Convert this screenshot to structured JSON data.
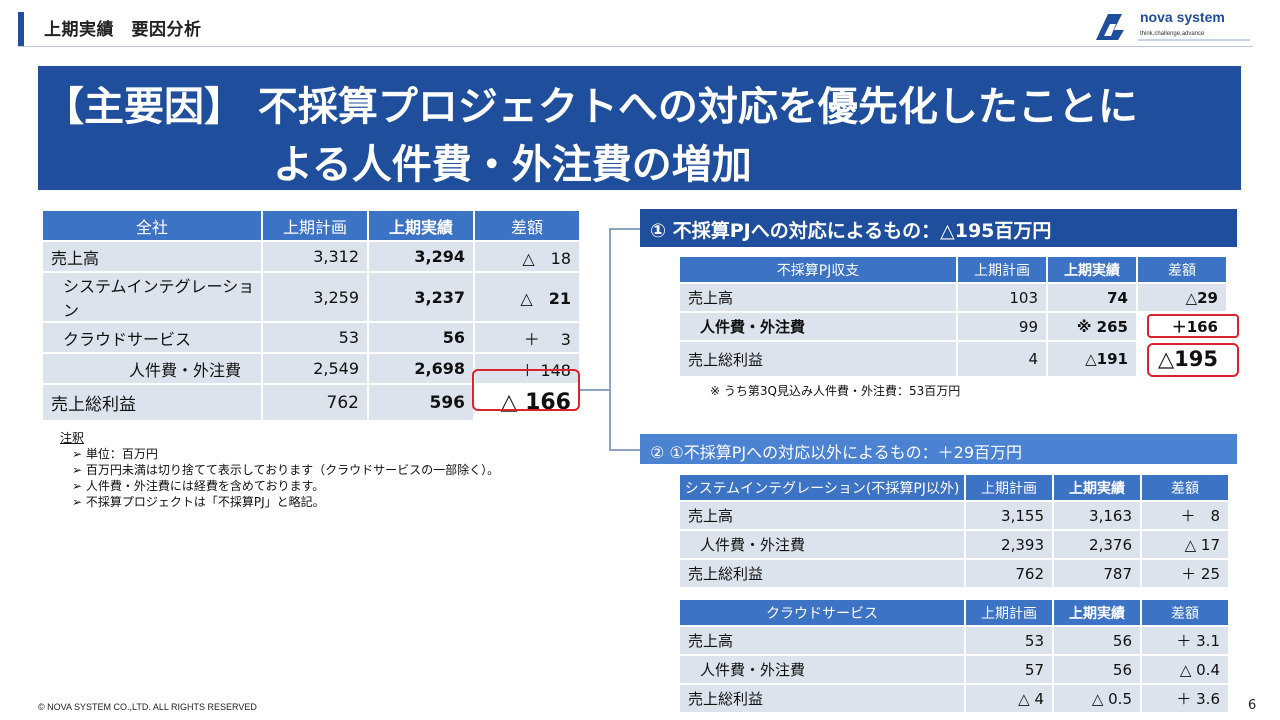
{
  "header": {
    "title": "上期実績　要因分析"
  },
  "logo": {
    "name": "nova system",
    "tagline": "think,challenge,advance"
  },
  "banner": {
    "line1": "【主要因】 不採算プロジェクトへの対応を優先化したことに",
    "line2": "よる人件費・外注費の増加"
  },
  "main_table": {
    "headers": [
      "全社",
      "上期計画",
      "上期実績",
      "差額"
    ],
    "rows": [
      {
        "label": "売上高",
        "plan": "3,312",
        "actual": "3,294",
        "diff": "△　18"
      },
      {
        "label": "システムインテグレーション",
        "plan": "3,259",
        "actual": "3,237",
        "diff": "△　21"
      },
      {
        "label": "クラウドサービス",
        "plan": "53",
        "actual": "56",
        "diff": "＋　 3"
      },
      {
        "label": "人件費・外注費",
        "plan": "2,549",
        "actual": "2,698",
        "diff": "＋ 148"
      },
      {
        "label": "売上総利益",
        "plan": "762",
        "actual": "596",
        "diff": "△ 166"
      }
    ]
  },
  "notes": {
    "title": "注釈",
    "items": [
      "➢ 単位：百万円",
      "➢ 百万円未満は切り捨てて表示しております（クラウドサービスの一部除く）。",
      "➢ 人件費・外注費には経費を含めております。",
      "➢ 不採算プロジェクトは「不採算PJ」と略記。"
    ]
  },
  "section1": {
    "title": "① 不採算PJへの対応によるもの：△195百万円",
    "table": {
      "headers": [
        "不採算PJ収支",
        "上期計画",
        "上期実績",
        "差額"
      ],
      "rows": [
        {
          "label": "売上高",
          "plan": "103",
          "actual": "74",
          "diff": "△29"
        },
        {
          "label": "人件費・外注費",
          "plan": "99",
          "actual": "※ 265",
          "diff": "＋166"
        },
        {
          "label": "売上総利益",
          "plan": "4",
          "actual": "△191",
          "diff": "△195"
        }
      ]
    },
    "note": "※ うち第3Q見込み人件費・外注費：53百万円"
  },
  "section2": {
    "title": "② ①不採算PJへの対応以外によるもの：＋29百万円",
    "si_table": {
      "headers": [
        "システムインテグレーション(不採算PJ以外)",
        "上期計画",
        "上期実績",
        "差額"
      ],
      "rows": [
        {
          "label": "売上高",
          "plan": "3,155",
          "actual": "3,163",
          "diff": "＋　8"
        },
        {
          "label": "人件費・外注費",
          "plan": "2,393",
          "actual": "2,376",
          "diff": "△ 17"
        },
        {
          "label": "売上総利益",
          "plan": "762",
          "actual": "787",
          "diff": "＋ 25"
        }
      ]
    },
    "cloud_table": {
      "headers": [
        "クラウドサービス",
        "上期計画",
        "上期実績",
        "差額"
      ],
      "rows": [
        {
          "label": "売上高",
          "plan": "53",
          "actual": "56",
          "diff": "＋ 3.1"
        },
        {
          "label": "人件費・外注費",
          "plan": "57",
          "actual": "56",
          "diff": "△ 0.4"
        },
        {
          "label": "売上総利益",
          "plan": "△ 4",
          "actual": "△ 0.5",
          "diff": "＋ 3.6"
        }
      ]
    }
  },
  "footer": {
    "copyright": "© NOVA SYSTEM CO.,LTD. ALL RIGHTS RESERVED",
    "page": "6"
  }
}
